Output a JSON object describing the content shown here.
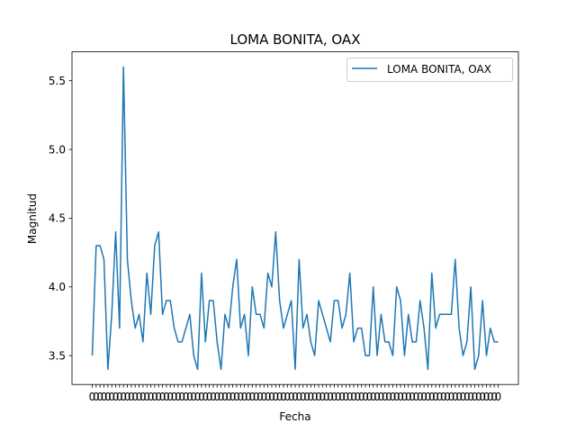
{
  "chart_data": {
    "type": "line",
    "title": "LOMA BONITA, OAX",
    "xlabel": "Fecha",
    "ylabel": "Magnitud",
    "ylim": [
      3.29,
      5.71
    ],
    "yticks": [
      3.5,
      4.0,
      4.5,
      5.0,
      5.5
    ],
    "ytick_labels": [
      "3.5",
      "4.0",
      "4.5",
      "5.0",
      "5.5"
    ],
    "grid": false,
    "legend_position": "top-right",
    "series": [
      {
        "name": "LOMA BONITA, OAX",
        "color": "#1f77b4",
        "values": [
          3.5,
          4.3,
          4.3,
          4.2,
          3.4,
          3.8,
          4.4,
          3.7,
          5.6,
          4.2,
          3.9,
          3.7,
          3.8,
          3.6,
          4.1,
          3.8,
          4.3,
          4.4,
          3.8,
          3.9,
          3.9,
          3.7,
          3.6,
          3.6,
          3.7,
          3.8,
          3.5,
          3.4,
          4.1,
          3.6,
          3.9,
          3.9,
          3.6,
          3.4,
          3.8,
          3.7,
          4.0,
          4.2,
          3.7,
          3.8,
          3.5,
          4.0,
          3.8,
          3.8,
          3.7,
          4.1,
          4.0,
          4.4,
          3.9,
          3.7,
          3.8,
          3.9,
          3.4,
          4.2,
          3.7,
          3.8,
          3.6,
          3.5,
          3.9,
          3.8,
          3.7,
          3.6,
          3.9,
          3.9,
          3.7,
          3.8,
          4.1,
          3.6,
          3.7,
          3.7,
          3.5,
          3.5,
          4.0,
          3.5,
          3.8,
          3.6,
          3.6,
          3.5,
          4.0,
          3.9,
          3.5,
          3.8,
          3.6,
          3.6,
          3.9,
          3.7,
          3.4,
          4.1,
          3.7,
          3.8,
          3.8,
          3.8,
          3.8,
          4.2,
          3.7,
          3.5,
          3.6,
          4.0,
          3.4,
          3.5,
          3.9,
          3.5,
          3.7,
          3.6,
          3.6
        ]
      }
    ],
    "xtick_label_text": "0"
  }
}
